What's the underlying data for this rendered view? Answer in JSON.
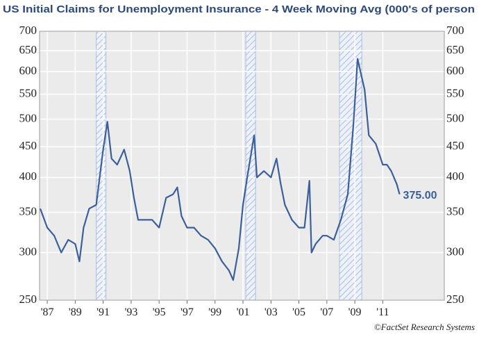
{
  "chart_data": {
    "type": "line",
    "title": "US Initial Claims for Unemployment Insurance - 4 Week Moving Avg (000's of person",
    "source": "©FactSet Research Systems",
    "log_scale": true,
    "grid": true,
    "xlim": [
      1986.45,
      2015.4
    ],
    "ylim": [
      250,
      700
    ],
    "yticks": [
      250,
      300,
      350,
      400,
      450,
      500,
      550,
      600,
      650,
      700
    ],
    "xticks": [
      {
        "value": 1987,
        "label": "'87"
      },
      {
        "value": 1989,
        "label": "'89"
      },
      {
        "value": 1991,
        "label": "'91"
      },
      {
        "value": 1993,
        "label": "'93"
      },
      {
        "value": 1995,
        "label": "'95"
      },
      {
        "value": 1997,
        "label": "'97"
      },
      {
        "value": 1999,
        "label": "'99"
      },
      {
        "value": 2001,
        "label": "'01"
      },
      {
        "value": 2003,
        "label": "'03"
      },
      {
        "value": 2005,
        "label": "'05"
      },
      {
        "value": 2007,
        "label": "'07"
      },
      {
        "value": 2009,
        "label": "'09"
      },
      {
        "value": 2011,
        "label": "'11"
      }
    ],
    "recessions": [
      {
        "start": 1990.5,
        "end": 1991.2
      },
      {
        "start": 2001.2,
        "end": 2001.9
      },
      {
        "start": 2007.9,
        "end": 2009.5
      }
    ],
    "recession_color": "#a9bde6",
    "x": [
      1986.5,
      1987.0,
      1987.5,
      1988.0,
      1988.5,
      1989.0,
      1989.3,
      1989.6,
      1990.0,
      1990.5,
      1991.0,
      1991.3,
      1991.6,
      1992.0,
      1992.5,
      1992.9,
      1993.2,
      1993.5,
      1994.0,
      1994.5,
      1995.0,
      1995.5,
      1996.0,
      1996.3,
      1996.6,
      1997.0,
      1997.5,
      1998.0,
      1998.5,
      1999.0,
      1999.5,
      2000.0,
      2000.3,
      2000.7,
      2001.0,
      2001.3,
      2001.8,
      2002.0,
      2002.5,
      2003.0,
      2003.4,
      2003.7,
      2004.0,
      2004.5,
      2005.0,
      2005.4,
      2005.75,
      2005.9,
      2006.2,
      2006.7,
      2007.0,
      2007.5,
      2008.0,
      2008.5,
      2008.9,
      2009.2,
      2009.4,
      2009.7,
      2010.0,
      2010.5,
      2011.0,
      2011.3,
      2011.6,
      2012.0,
      2012.2
    ],
    "series": [
      {
        "color": "#3a5f9a",
        "values": [
          355,
          330,
          320,
          300,
          315,
          310,
          290,
          330,
          355,
          360,
          445,
          495,
          430,
          420,
          445,
          410,
          370,
          340,
          340,
          340,
          330,
          370,
          375,
          385,
          345,
          330,
          330,
          320,
          315,
          305,
          290,
          280,
          270,
          305,
          360,
          400,
          470,
          400,
          410,
          400,
          430,
          390,
          360,
          340,
          330,
          330,
          395,
          300,
          310,
          320,
          320,
          315,
          340,
          375,
          490,
          630,
          600,
          560,
          470,
          455,
          420,
          420,
          410,
          390,
          375
        ],
        "value_labels": [
          null,
          null,
          null,
          null,
          null,
          null,
          null,
          null,
          null,
          null,
          null,
          null,
          null,
          null,
          null,
          null,
          null,
          null,
          null,
          null,
          null,
          null,
          null,
          null,
          null,
          null,
          null,
          null,
          null,
          null,
          null,
          null,
          null,
          null,
          null,
          null,
          null,
          null,
          null,
          null,
          null,
          null,
          null,
          null,
          null,
          null,
          null,
          null,
          null,
          null,
          null,
          null,
          null,
          null,
          null,
          null,
          null,
          null,
          null,
          null,
          null,
          null,
          null,
          null,
          "375.00"
        ]
      }
    ]
  }
}
